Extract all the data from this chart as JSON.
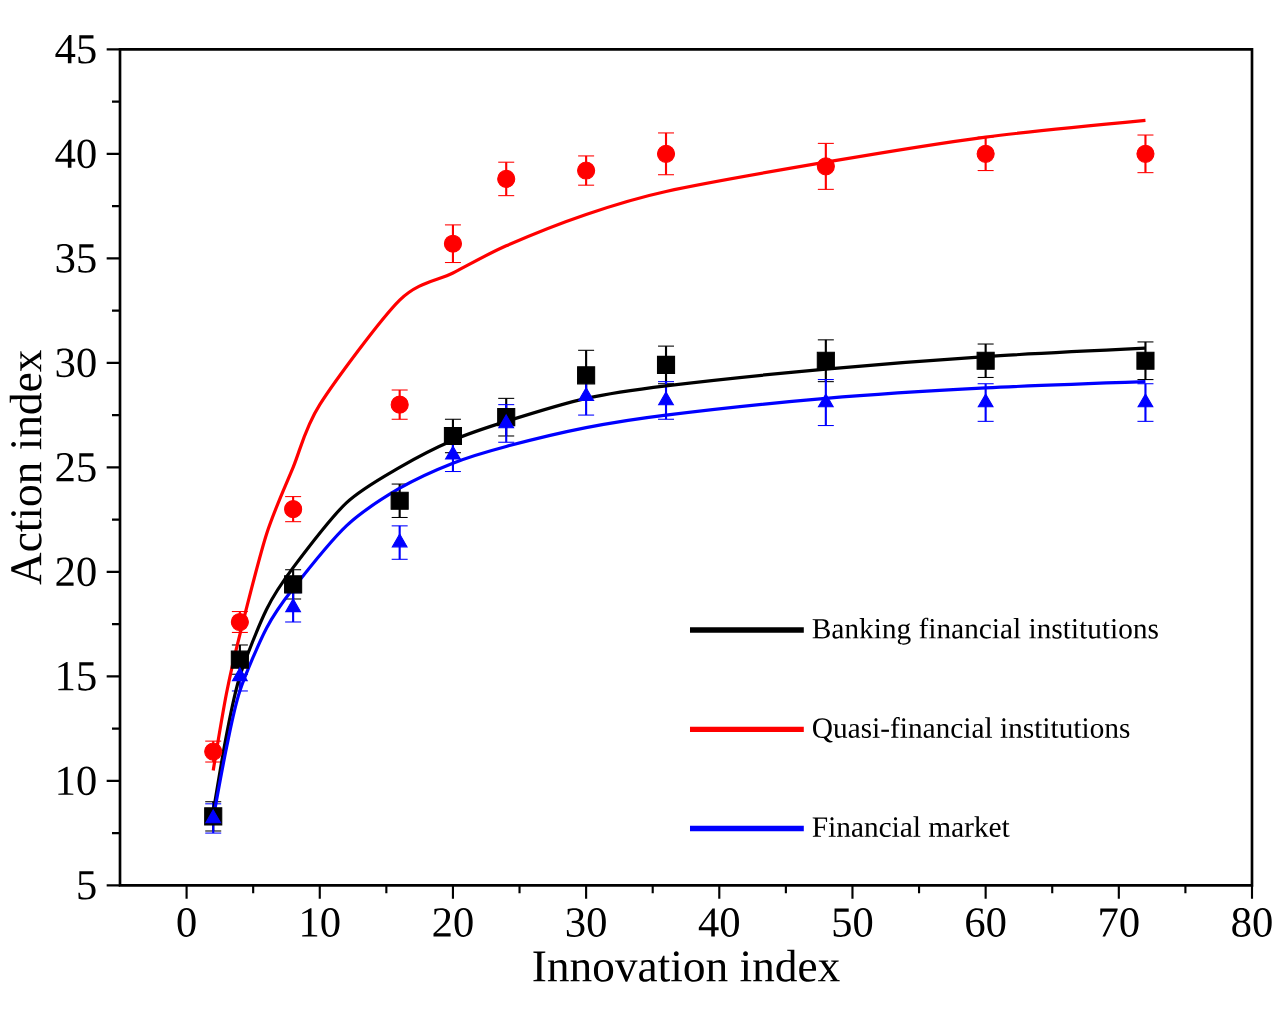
{
  "chart_data": {
    "type": "scatter",
    "xlabel": "Innovation index",
    "ylabel": "Action index",
    "xlim": [
      -5,
      80
    ],
    "ylim": [
      5,
      45
    ],
    "xticks": [
      0,
      10,
      20,
      30,
      40,
      50,
      60,
      70,
      80
    ],
    "yticks": [
      5,
      10,
      15,
      20,
      25,
      30,
      35,
      40,
      45
    ],
    "grid": false,
    "legend": "bottom right",
    "series": [
      {
        "marker": "square",
        "color": "#000000",
        "x": [
          2,
          4,
          8,
          16,
          20,
          24,
          30,
          36,
          48,
          60,
          72
        ],
        "values": [
          8.3,
          15.8,
          19.4,
          23.4,
          26.5,
          27.4,
          29.4,
          29.9,
          30.1,
          30.1,
          30.1
        ],
        "errors": [
          0.7,
          0.7,
          0.7,
          0.8,
          0.8,
          0.9,
          1.2,
          0.9,
          1.0,
          0.8,
          0.9
        ]
      },
      {
        "marker": "circle",
        "color": "#ff0000",
        "x": [
          2,
          4,
          8,
          16,
          20,
          24,
          30,
          36,
          48,
          60,
          72
        ],
        "values": [
          11.4,
          17.6,
          23.0,
          28.0,
          35.7,
          38.8,
          39.2,
          40.0,
          39.4,
          40.0,
          40.0
        ],
        "errors": [
          0.5,
          0.5,
          0.6,
          0.7,
          0.9,
          0.8,
          0.7,
          1.0,
          1.1,
          0.8,
          0.9
        ]
      },
      {
        "marker": "triangle",
        "color": "#0000ff",
        "x": [
          2,
          4,
          8,
          16,
          20,
          24,
          30,
          36,
          48,
          60,
          72
        ],
        "values": [
          8.2,
          15.0,
          18.3,
          21.4,
          25.6,
          27.1,
          28.4,
          28.2,
          28.1,
          28.1,
          28.1
        ],
        "errors": [
          0.7,
          0.7,
          0.7,
          0.8,
          0.8,
          0.9,
          0.9,
          0.9,
          1.1,
          0.9,
          0.9
        ]
      },
      {
        "type": "line",
        "name": "Banking financial institutions",
        "color": "#000000",
        "x": [
          2,
          3,
          4,
          6,
          8,
          12,
          16,
          20,
          24,
          30,
          36,
          48,
          60,
          72
        ],
        "values": [
          8.5,
          12.2,
          15.0,
          18.2,
          20.2,
          23.3,
          25.0,
          26.3,
          27.2,
          28.3,
          28.9,
          29.7,
          30.3,
          30.7
        ]
      },
      {
        "type": "line",
        "name": "Quasi-financial institutions",
        "color": "#ff0000",
        "x": [
          2,
          3,
          4,
          6,
          8,
          10,
          16,
          20,
          24,
          30,
          36,
          48,
          60,
          72
        ],
        "values": [
          10.5,
          14.2,
          17.0,
          21.8,
          25.0,
          28.0,
          33.0,
          34.3,
          35.6,
          37.1,
          38.2,
          39.6,
          40.8,
          41.6
        ]
      },
      {
        "type": "line",
        "name": "Financial market",
        "color": "#0000ff",
        "x": [
          2,
          3,
          4,
          6,
          8,
          12,
          16,
          20,
          24,
          30,
          36,
          48,
          60,
          72
        ],
        "values": [
          8.2,
          11.6,
          14.3,
          17.3,
          19.2,
          22.2,
          24.0,
          25.2,
          26.0,
          26.9,
          27.5,
          28.3,
          28.8,
          29.1
        ]
      }
    ]
  }
}
